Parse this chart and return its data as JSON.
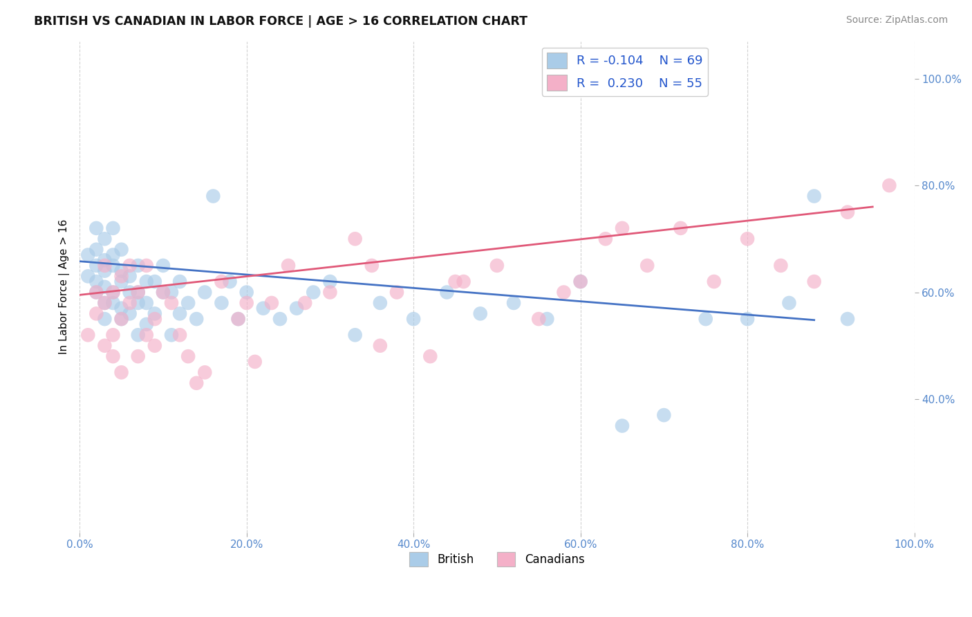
{
  "title": "BRITISH VS CANADIAN IN LABOR FORCE | AGE > 16 CORRELATION CHART",
  "source": "Source: ZipAtlas.com",
  "ylabel": "In Labor Force | Age > 16",
  "british_R": -0.104,
  "british_N": 69,
  "canadian_R": 0.23,
  "canadian_N": 55,
  "british_color": "#aacce8",
  "canadian_color": "#f4b0c8",
  "british_line_color": "#4472c4",
  "canadian_line_color": "#e05878",
  "background_color": "#ffffff",
  "grid_color": "#cccccc",
  "title_color": "#111111",
  "source_color": "#888888",
  "legend_text_color": "#2255cc",
  "tick_color": "#5588cc",
  "british_x": [
    0.01,
    0.01,
    0.02,
    0.02,
    0.02,
    0.02,
    0.02,
    0.03,
    0.03,
    0.03,
    0.03,
    0.03,
    0.03,
    0.04,
    0.04,
    0.04,
    0.04,
    0.04,
    0.05,
    0.05,
    0.05,
    0.05,
    0.05,
    0.06,
    0.06,
    0.06,
    0.07,
    0.07,
    0.07,
    0.07,
    0.08,
    0.08,
    0.08,
    0.09,
    0.09,
    0.1,
    0.1,
    0.11,
    0.11,
    0.12,
    0.12,
    0.13,
    0.14,
    0.15,
    0.16,
    0.17,
    0.18,
    0.19,
    0.2,
    0.22,
    0.24,
    0.26,
    0.28,
    0.3,
    0.33,
    0.36,
    0.4,
    0.44,
    0.48,
    0.52,
    0.56,
    0.6,
    0.65,
    0.7,
    0.75,
    0.8,
    0.85,
    0.88,
    0.92
  ],
  "british_y": [
    0.63,
    0.67,
    0.62,
    0.65,
    0.68,
    0.6,
    0.72,
    0.58,
    0.64,
    0.66,
    0.7,
    0.61,
    0.55,
    0.6,
    0.65,
    0.58,
    0.72,
    0.67,
    0.55,
    0.62,
    0.64,
    0.68,
    0.57,
    0.6,
    0.56,
    0.63,
    0.52,
    0.58,
    0.6,
    0.65,
    0.54,
    0.62,
    0.58,
    0.56,
    0.62,
    0.6,
    0.65,
    0.52,
    0.6,
    0.56,
    0.62,
    0.58,
    0.55,
    0.6,
    0.78,
    0.58,
    0.62,
    0.55,
    0.6,
    0.57,
    0.55,
    0.57,
    0.6,
    0.62,
    0.52,
    0.58,
    0.55,
    0.6,
    0.56,
    0.58,
    0.55,
    0.62,
    0.35,
    0.37,
    0.55,
    0.55,
    0.58,
    0.78,
    0.55
  ],
  "canadian_x": [
    0.01,
    0.02,
    0.02,
    0.03,
    0.03,
    0.03,
    0.04,
    0.04,
    0.04,
    0.05,
    0.05,
    0.05,
    0.06,
    0.06,
    0.07,
    0.07,
    0.08,
    0.08,
    0.09,
    0.09,
    0.1,
    0.11,
    0.12,
    0.13,
    0.14,
    0.15,
    0.17,
    0.19,
    0.21,
    0.23,
    0.25,
    0.27,
    0.3,
    0.33,
    0.36,
    0.38,
    0.42,
    0.46,
    0.5,
    0.55,
    0.6,
    0.63,
    0.68,
    0.72,
    0.76,
    0.8,
    0.84,
    0.88,
    0.92,
    0.97,
    0.2,
    0.35,
    0.45,
    0.58,
    0.65
  ],
  "canadian_y": [
    0.52,
    0.56,
    0.6,
    0.5,
    0.58,
    0.65,
    0.52,
    0.6,
    0.48,
    0.55,
    0.63,
    0.45,
    0.58,
    0.65,
    0.48,
    0.6,
    0.52,
    0.65,
    0.5,
    0.55,
    0.6,
    0.58,
    0.52,
    0.48,
    0.43,
    0.45,
    0.62,
    0.55,
    0.47,
    0.58,
    0.65,
    0.58,
    0.6,
    0.7,
    0.5,
    0.6,
    0.48,
    0.62,
    0.65,
    0.55,
    0.62,
    0.7,
    0.65,
    0.72,
    0.62,
    0.7,
    0.65,
    0.62,
    0.75,
    0.8,
    0.58,
    0.65,
    0.62,
    0.6,
    0.72
  ],
  "xlim": [
    0.0,
    1.0
  ],
  "ylim": [
    0.15,
    1.07
  ],
  "x_ticks": [
    0.0,
    0.2,
    0.4,
    0.6,
    0.8,
    1.0
  ],
  "x_tick_labels": [
    "0.0%",
    "20.0%",
    "40.0%",
    "60.0%",
    "80.0%",
    "100.0%"
  ],
  "y_ticks_right": [
    0.4,
    0.6,
    0.8,
    1.0
  ],
  "y_tick_labels_right": [
    "40.0%",
    "60.0%",
    "80.0%",
    "100.0%"
  ],
  "british_line_x": [
    0.0,
    0.88
  ],
  "canadian_line_x": [
    0.0,
    0.95
  ],
  "british_line_y_start": 0.658,
  "british_line_y_end": 0.548,
  "canadian_line_y_start": 0.595,
  "canadian_line_y_end": 0.76
}
